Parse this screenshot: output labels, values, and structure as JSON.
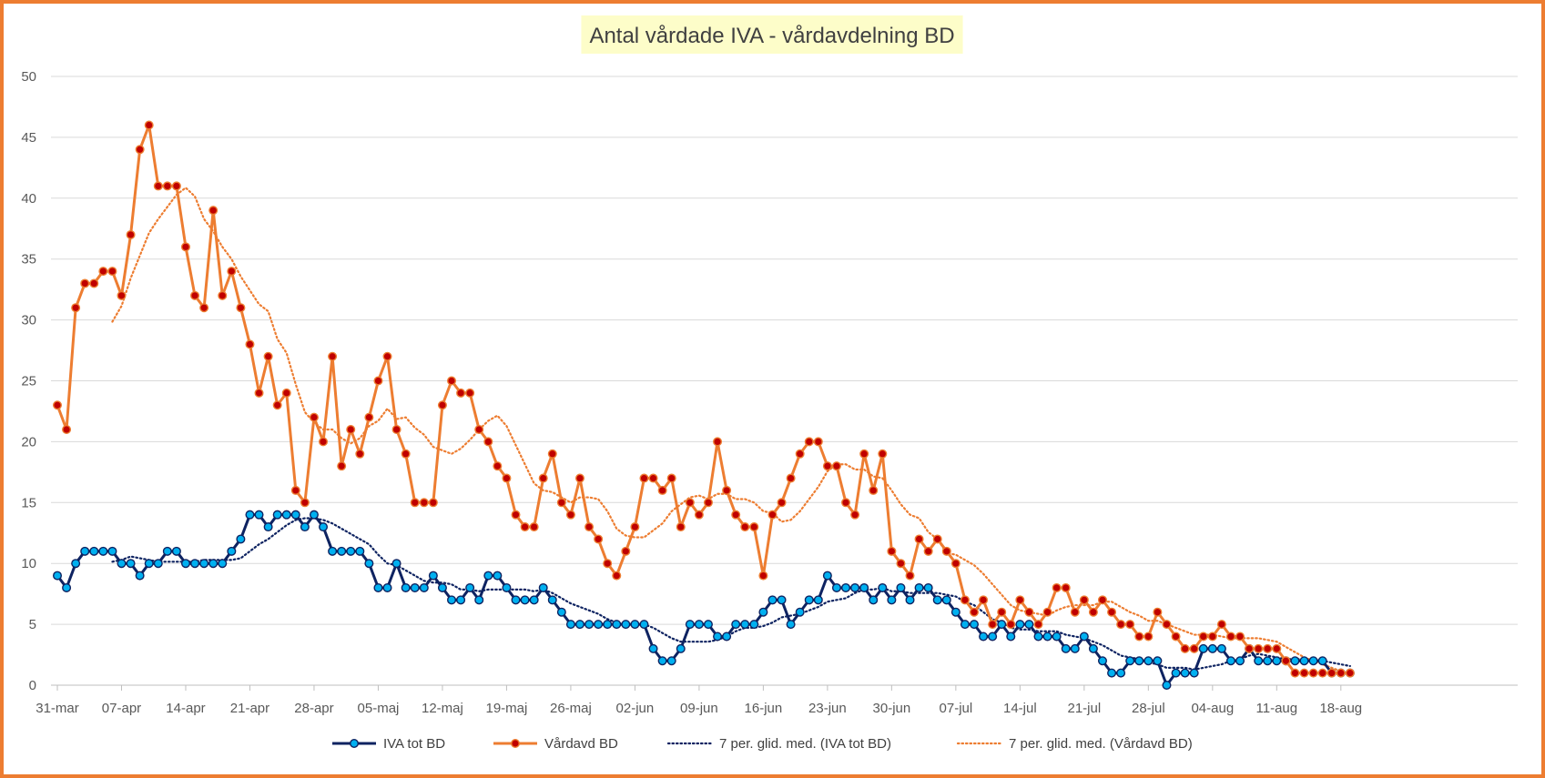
{
  "chart_data": {
    "type": "line",
    "title": "Antal vårdade IVA - vårdavdelning BD",
    "ylim": [
      0,
      50
    ],
    "yticks": [
      0,
      5,
      10,
      15,
      20,
      25,
      30,
      35,
      40,
      45,
      50
    ],
    "xlim": [
      "2020-03-31",
      "2020-08-18"
    ],
    "xticks": [
      "31-mar",
      "07-apr",
      "14-apr",
      "21-apr",
      "28-apr",
      "05-maj",
      "12-maj",
      "19-maj",
      "26-maj",
      "02-jun",
      "09-jun",
      "16-jun",
      "23-jun",
      "30-jun",
      "07-jul",
      "14-jul",
      "21-jul",
      "28-jul",
      "04-aug",
      "11-aug",
      "18-aug"
    ],
    "grid": "horizontal",
    "legend_position": "bottom",
    "x_start": "2020-03-31",
    "series": [
      {
        "name": "IVA tot BD",
        "color": "#0e2361",
        "marker_fill": "#00b0f0",
        "values": [
          9,
          8,
          10,
          11,
          11,
          11,
          11,
          10,
          10,
          9,
          10,
          10,
          11,
          11,
          10,
          10,
          10,
          10,
          10,
          11,
          12,
          14,
          14,
          13,
          14,
          14,
          14,
          13,
          14,
          13,
          11,
          11,
          11,
          11,
          10,
          8,
          8,
          10,
          8,
          8,
          8,
          9,
          8,
          7,
          7,
          8,
          7,
          9,
          9,
          8,
          7,
          7,
          7,
          8,
          7,
          6,
          5,
          5,
          5,
          5,
          5,
          5,
          5,
          5,
          5,
          3,
          2,
          2,
          3,
          5,
          5,
          5,
          4,
          4,
          5,
          5,
          5,
          6,
          7,
          7,
          5,
          6,
          7,
          7,
          9,
          8,
          8,
          8,
          8,
          7,
          8,
          7,
          8,
          7,
          8,
          8,
          7,
          7,
          6,
          5,
          5,
          4,
          4,
          5,
          4,
          5,
          5,
          4,
          4,
          4,
          3,
          3,
          4,
          3,
          2,
          1,
          1,
          2,
          2,
          2,
          2,
          0,
          1,
          1,
          1,
          3,
          3,
          3,
          2,
          2,
          3,
          2,
          2,
          2,
          2,
          2,
          2,
          2,
          2,
          1,
          1,
          1
        ]
      },
      {
        "name": "Vårdavd BD",
        "color": "#ed7d31",
        "marker_fill": "#c00000",
        "values": [
          23,
          21,
          31,
          33,
          33,
          34,
          34,
          32,
          37,
          44,
          46,
          41,
          41,
          41,
          36,
          32,
          31,
          39,
          32,
          34,
          31,
          28,
          24,
          27,
          23,
          24,
          16,
          15,
          22,
          20,
          27,
          18,
          21,
          19,
          22,
          25,
          27,
          21,
          19,
          15,
          15,
          15,
          23,
          25,
          24,
          24,
          21,
          20,
          18,
          17,
          14,
          13,
          13,
          17,
          19,
          15,
          14,
          17,
          13,
          12,
          10,
          9,
          11,
          13,
          17,
          17,
          16,
          17,
          13,
          15,
          14,
          15,
          20,
          16,
          14,
          13,
          13,
          9,
          14,
          15,
          17,
          19,
          20,
          20,
          18,
          18,
          15,
          14,
          19,
          16,
          19,
          11,
          10,
          9,
          12,
          11,
          12,
          11,
          10,
          7,
          6,
          7,
          5,
          6,
          5,
          7,
          6,
          5,
          6,
          8,
          8,
          6,
          7,
          6,
          7,
          6,
          5,
          5,
          4,
          4,
          6,
          5,
          4,
          3,
          3,
          4,
          4,
          5,
          4,
          4,
          3,
          3,
          3,
          3,
          2,
          1,
          1,
          1,
          1,
          1,
          1,
          1
        ]
      },
      {
        "name": "7 per. glid. med. (IVA tot BD)",
        "color": "#0e2361",
        "style": "dotted",
        "source": "IVA tot BD",
        "window": 7
      },
      {
        "name": "7 per. glid. med. (Vårdavd BD)",
        "color": "#ed7d31",
        "style": "dotted",
        "source": "Vårdavd BD",
        "window": 7
      }
    ]
  },
  "colors": {
    "frame": "#ed7d31",
    "title_background": "#fdfdc9",
    "gridline": "#d9d9d9",
    "axis": "#bfbfbf",
    "tick_text": "#595959"
  }
}
